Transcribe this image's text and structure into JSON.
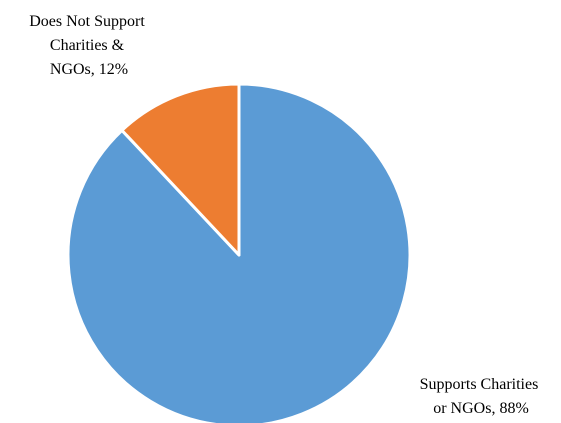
{
  "chart_data": {
    "type": "pie",
    "title": "",
    "slices": [
      {
        "label_lines": [
          "Supports Charities",
          "or NGOs, 88%"
        ],
        "value": 88,
        "color": "#5B9BD5"
      },
      {
        "label_lines": [
          "Does Not Support",
          "Charities &",
          "NGOs, 12%"
        ],
        "value": 12,
        "color": "#ED7D31"
      }
    ],
    "start": "12 o'clock",
    "direction": "clockwise",
    "legend": "none"
  }
}
